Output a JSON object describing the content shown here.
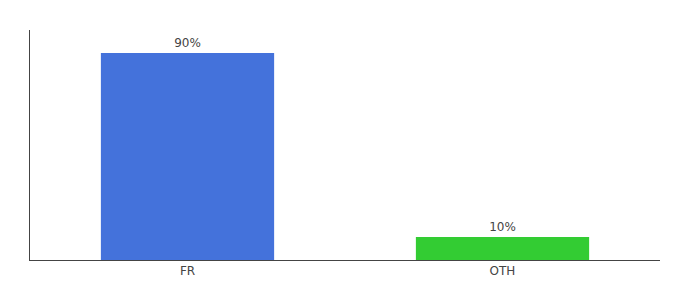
{
  "chart_data": {
    "type": "bar",
    "categories": [
      "FR",
      "OTH"
    ],
    "values": [
      90,
      10
    ],
    "value_labels": [
      "90%",
      "10%"
    ],
    "data_labels": true,
    "colors": [
      "#4472db",
      "#33cc33"
    ],
    "ylim": [
      0,
      100
    ],
    "grid": false,
    "tick_labels": "x"
  }
}
